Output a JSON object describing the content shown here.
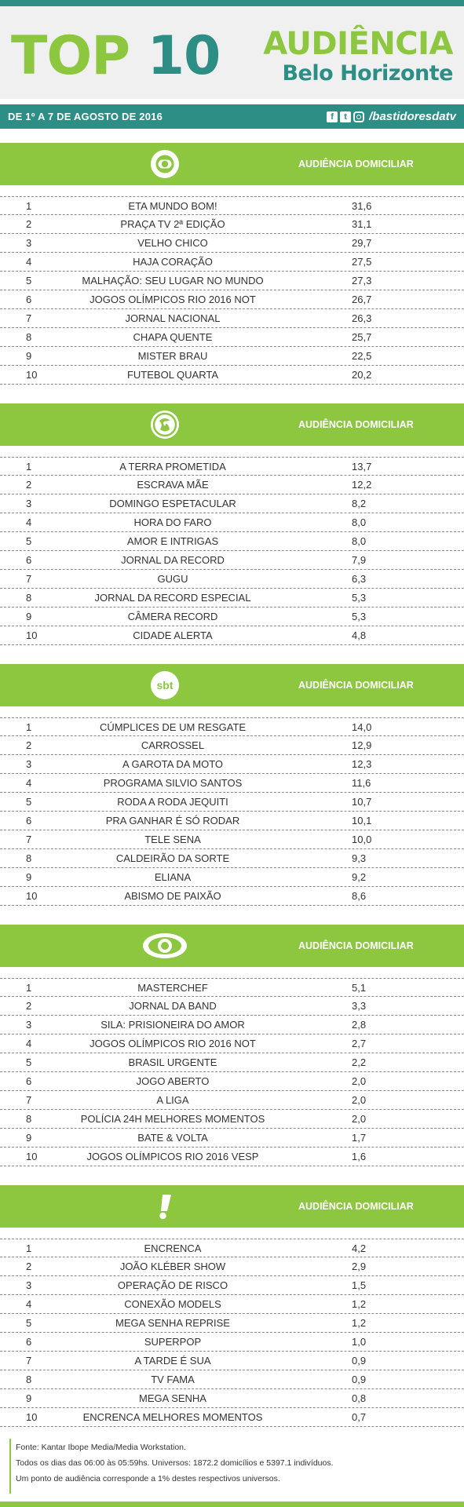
{
  "header": {
    "top_word1": "TOP",
    "top_word2": "10",
    "audiencia": "AUDIÊNCIA",
    "city": "Belo Horizonte"
  },
  "datebar": {
    "date": "DE 1º A 7 DE AGOSTO DE 2016",
    "handle": "/bastidoresdatv",
    "icons": [
      "facebook-icon",
      "twitter-icon",
      "instagram-icon"
    ]
  },
  "colors": {
    "green": "#8dc63f",
    "teal": "#2d8e85"
  },
  "sections": [
    {
      "label": "AUDIÊNCIA DOMICILIAR",
      "logo": "globo-logo",
      "rows": [
        {
          "rank": "1",
          "program": "ETA MUNDO BOM!",
          "value": "31,6"
        },
        {
          "rank": "2",
          "program": "PRAÇA TV 2ª EDIÇÃO",
          "value": "31,1"
        },
        {
          "rank": "3",
          "program": "VELHO CHICO",
          "value": "29,7"
        },
        {
          "rank": "4",
          "program": "HAJA CORAÇÃO",
          "value": "27,5"
        },
        {
          "rank": "5",
          "program": "MALHAÇÃO: SEU LUGAR NO MUNDO",
          "value": "27,3"
        },
        {
          "rank": "6",
          "program": "JOGOS OLÍMPICOS RIO 2016 NOT",
          "value": "26,7"
        },
        {
          "rank": "7",
          "program": "JORNAL NACIONAL",
          "value": "26,3"
        },
        {
          "rank": "8",
          "program": "CHAPA QUENTE",
          "value": "25,7"
        },
        {
          "rank": "9",
          "program": "MISTER BRAU",
          "value": "22,5"
        },
        {
          "rank": "10",
          "program": "FUTEBOL QUARTA",
          "value": "20,2"
        }
      ]
    },
    {
      "label": "AUDIÊNCIA DOMICILIAR",
      "logo": "record-logo",
      "rows": [
        {
          "rank": "1",
          "program": "A TERRA PROMETIDA",
          "value": "13,7"
        },
        {
          "rank": "2",
          "program": "ESCRAVA MÃE",
          "value": "12,2"
        },
        {
          "rank": "3",
          "program": "DOMINGO ESPETACULAR",
          "value": "8,2"
        },
        {
          "rank": "4",
          "program": "HORA DO FARO",
          "value": "8,0"
        },
        {
          "rank": "5",
          "program": "AMOR E INTRIGAS",
          "value": "8,0"
        },
        {
          "rank": "6",
          "program": "JORNAL DA RECORD",
          "value": "7,9"
        },
        {
          "rank": "7",
          "program": "GUGU",
          "value": "6,3"
        },
        {
          "rank": "8",
          "program": "JORNAL DA RECORD ESPECIAL",
          "value": "5,3"
        },
        {
          "rank": "9",
          "program": "CÂMERA RECORD",
          "value": "5,3"
        },
        {
          "rank": "10",
          "program": "CIDADE ALERTA",
          "value": "4,8"
        }
      ]
    },
    {
      "label": "AUDIÊNCIA DOMICILIAR",
      "logo": "sbt-logo",
      "logo_text": "sbt",
      "rows": [
        {
          "rank": "1",
          "program": "CÚMPLICES DE UM RESGATE",
          "value": "14,0"
        },
        {
          "rank": "2",
          "program": "CARROSSEL",
          "value": "12,9"
        },
        {
          "rank": "3",
          "program": "A GAROTA DA MOTO",
          "value": "12,3"
        },
        {
          "rank": "4",
          "program": "PROGRAMA SILVIO SANTOS",
          "value": "11,6"
        },
        {
          "rank": "5",
          "program": "RODA A RODA JEQUITI",
          "value": "10,7"
        },
        {
          "rank": "6",
          "program": "PRA GANHAR É SÓ RODAR",
          "value": "10,1"
        },
        {
          "rank": "7",
          "program": "TELE SENA",
          "value": "10,0"
        },
        {
          "rank": "8",
          "program": "CALDEIRÃO DA SORTE",
          "value": "9,3"
        },
        {
          "rank": "9",
          "program": "ELIANA",
          "value": "9,2"
        },
        {
          "rank": "10",
          "program": "ABISMO DE PAIXÃO",
          "value": "8,6"
        }
      ]
    },
    {
      "label": "AUDIÊNCIA DOMICILIAR",
      "logo": "band-logo",
      "rows": [
        {
          "rank": "1",
          "program": "MASTERCHEF",
          "value": "5,1"
        },
        {
          "rank": "2",
          "program": "JORNAL DA BAND",
          "value": "3,3"
        },
        {
          "rank": "3",
          "program": "SILA: PRISIONEIRA DO AMOR",
          "value": "2,8"
        },
        {
          "rank": "4",
          "program": "JOGOS OLÍMPICOS RIO 2016 NOT",
          "value": "2,7"
        },
        {
          "rank": "5",
          "program": "BRASIL URGENTE",
          "value": "2,2"
        },
        {
          "rank": "6",
          "program": "JOGO ABERTO",
          "value": "2,0"
        },
        {
          "rank": "7",
          "program": "A LIGA",
          "value": "2,0"
        },
        {
          "rank": "8",
          "program": "POLÍCIA 24H MELHORES MOMENTOS",
          "value": "2,0"
        },
        {
          "rank": "9",
          "program": "BATE & VOLTA",
          "value": "1,7"
        },
        {
          "rank": "10",
          "program": "JOGOS OLÍMPICOS RIO 2016 VESP",
          "value": "1,6"
        }
      ]
    },
    {
      "label": "AUDIÊNCIA DOMICILIAR",
      "logo": "redetv-logo",
      "rows": [
        {
          "rank": "1",
          "program": "ENCRENCA",
          "value": "4,2"
        },
        {
          "rank": "2",
          "program": "JOÃO KLÉBER SHOW",
          "value": "2,9"
        },
        {
          "rank": "3",
          "program": "OPERAÇÃO DE RISCO",
          "value": "1,5"
        },
        {
          "rank": "4",
          "program": "CONEXÃO MODELS",
          "value": "1,2"
        },
        {
          "rank": "5",
          "program": "MEGA SENHA REPRISE",
          "value": "1,2"
        },
        {
          "rank": "6",
          "program": "SUPERPOP",
          "value": "1,0"
        },
        {
          "rank": "7",
          "program": "A TARDE É SUA",
          "value": "0,9"
        },
        {
          "rank": "8",
          "program": "TV FAMA",
          "value": "0,9"
        },
        {
          "rank": "9",
          "program": "MEGA SENHA",
          "value": "0,8"
        },
        {
          "rank": "10",
          "program": "ENCRENCA MELHORES MOMENTOS",
          "value": "0,7"
        }
      ]
    }
  ],
  "footer": {
    "line1": "Fonte: Kantar Ibope Media/Media Workstation.",
    "line2": "Todos os dias das 06:00 às 05:59hs. Universos: 1872.2 domicílios e 5397.1 indivíduos.",
    "line3": "Um ponto de audiência corresponde a 1% destes respectivos universos."
  }
}
